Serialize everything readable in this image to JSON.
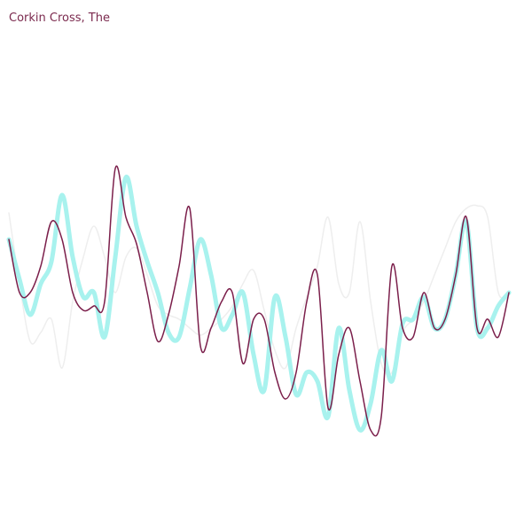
{
  "chart_data": {
    "type": "line",
    "title": "Corkin Cross, The",
    "x": [
      0,
      1,
      2,
      3,
      4,
      5,
      6,
      7,
      8,
      9,
      10,
      11,
      12,
      13,
      14,
      15,
      16,
      17,
      18,
      19,
      20,
      21,
      22,
      23,
      24,
      25,
      26,
      27,
      28,
      29,
      30,
      31,
      32,
      33,
      34,
      35,
      36,
      37,
      38,
      39,
      40,
      41,
      42,
      43,
      44,
      45,
      46,
      47
    ],
    "xlim": [
      0,
      47
    ],
    "ylim": [
      0,
      600
    ],
    "series": [
      {
        "color": "#eeeeee",
        "width": 1.5,
        "values": [
          360,
          280,
          215,
          225,
          240,
          185,
          260,
          310,
          345,
          310,
          270,
          310,
          320,
          290,
          255,
          245,
          240,
          230,
          222,
          230,
          240,
          255,
          280,
          295,
          250,
          205,
          185,
          230,
          265,
          300,
          355,
          280,
          270,
          350,
          260,
          190,
          180,
          225,
          240,
          260,
          290,
          320,
          350,
          365,
          368,
          355,
          270,
          270
        ]
      },
      {
        "color": "#a8f2ee",
        "width": 5,
        "values": [
          330,
          285,
          245,
          280,
          305,
          380,
          310,
          265,
          270,
          220,
          310,
          400,
          345,
          305,
          270,
          225,
          220,
          275,
          330,
          290,
          230,
          245,
          270,
          200,
          160,
          265,
          220,
          155,
          180,
          170,
          130,
          230,
          160,
          115,
          145,
          205,
          170,
          235,
          240,
          265,
          230,
          240,
          290,
          350,
          230,
          230,
          255,
          270
        ]
      },
      {
        "color": "#7b1f4b",
        "width": 1.5,
        "values": [
          330,
          270,
          270,
          300,
          350,
          330,
          270,
          250,
          255,
          260,
          410,
          355,
          325,
          270,
          215,
          245,
          300,
          365,
          210,
          230,
          260,
          270,
          190,
          240,
          240,
          180,
          150,
          180,
          260,
          290,
          140,
          200,
          230,
          170,
          115,
          130,
          300,
          230,
          220,
          270,
          230,
          240,
          290,
          355,
          230,
          240,
          220,
          270
        ]
      }
    ]
  }
}
